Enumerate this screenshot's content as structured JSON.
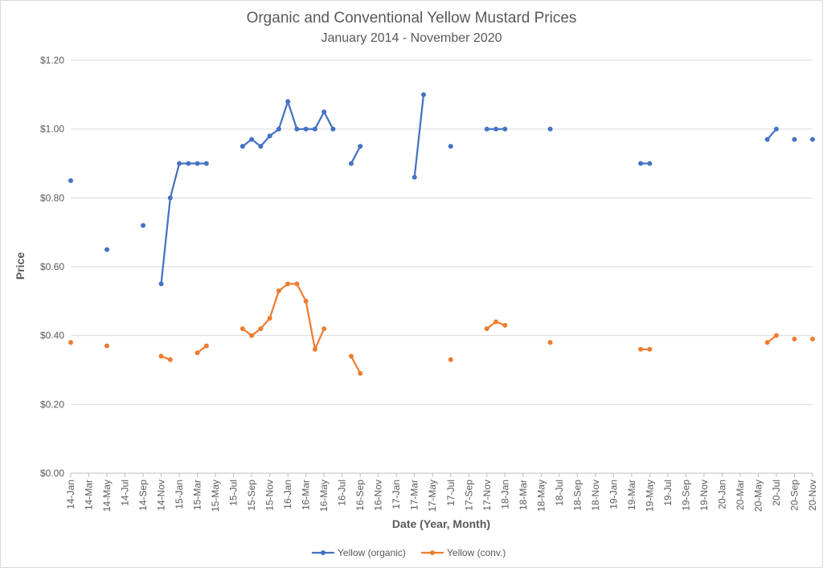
{
  "chart_data": {
    "type": "line",
    "title": "Organic and Conventional Yellow Mustard Prices",
    "subtitle": "January 2014 - November 2020",
    "xlabel": "Date (Year, Month)",
    "ylabel": "Price",
    "ylim": [
      0,
      1.2
    ],
    "y_ticks": [
      "$0.00",
      "$0.20",
      "$0.40",
      "$0.60",
      "$0.80",
      "$1.00",
      "$1.20"
    ],
    "x_tick_labels": [
      "14-Jan",
      "14-Mar",
      "14-May",
      "14-Jul",
      "14-Sep",
      "14-Nov",
      "15-Jan",
      "15-Mar",
      "15-May",
      "15-Jul",
      "15-Sep",
      "15-Nov",
      "16-Jan",
      "16-Mar",
      "16-May",
      "16-Jul",
      "16-Sep",
      "16-Nov",
      "17-Jan",
      "17-Mar",
      "17-May",
      "17-Jul",
      "17-Sep",
      "17-Nov",
      "18-Jan",
      "18-Mar",
      "18-May",
      "18-Jul",
      "18-Sep",
      "18-Nov",
      "19-Jan",
      "19-Mar",
      "19-May",
      "19-Jul",
      "19-Sep",
      "19-Nov",
      "20-Jan",
      "20-Mar",
      "20-May",
      "20-Jul",
      "20-Sep",
      "20-Nov"
    ],
    "grid": true,
    "legend_position": "bottom",
    "series": [
      {
        "name": "Yellow (organic)",
        "color": "#4472c4",
        "points": [
          {
            "x": "14-Jan",
            "y": 0.85
          },
          {
            "x": "14-May",
            "y": 0.65
          },
          {
            "x": "14-Sep",
            "y": 0.72
          },
          {
            "x": "14-Nov",
            "y": 0.55
          },
          {
            "x": "14-Dec",
            "y": 0.8
          },
          {
            "x": "15-Jan",
            "y": 0.9
          },
          {
            "x": "15-Feb",
            "y": 0.9
          },
          {
            "x": "15-Mar",
            "y": 0.9
          },
          {
            "x": "15-Apr",
            "y": 0.9
          },
          {
            "x": "15-Aug",
            "y": 0.95
          },
          {
            "x": "15-Sep",
            "y": 0.97
          },
          {
            "x": "15-Oct",
            "y": 0.95
          },
          {
            "x": "15-Nov",
            "y": 0.98
          },
          {
            "x": "15-Dec",
            "y": 1.0
          },
          {
            "x": "16-Jan",
            "y": 1.08
          },
          {
            "x": "16-Feb",
            "y": 1.0
          },
          {
            "x": "16-Mar",
            "y": 1.0
          },
          {
            "x": "16-Apr",
            "y": 1.0
          },
          {
            "x": "16-May",
            "y": 1.05
          },
          {
            "x": "16-Jun",
            "y": 1.0
          },
          {
            "x": "16-Aug",
            "y": 0.9
          },
          {
            "x": "16-Sep",
            "y": 0.95
          },
          {
            "x": "17-Mar",
            "y": 0.86
          },
          {
            "x": "17-Apr",
            "y": 1.1
          },
          {
            "x": "17-Jul",
            "y": 0.95
          },
          {
            "x": "17-Nov",
            "y": 1.0
          },
          {
            "x": "17-Dec",
            "y": 1.0
          },
          {
            "x": "18-Jan",
            "y": 1.0
          },
          {
            "x": "18-Jun",
            "y": 1.0
          },
          {
            "x": "19-Apr",
            "y": 0.9
          },
          {
            "x": "19-May",
            "y": 0.9
          },
          {
            "x": "20-Jun",
            "y": 0.97
          },
          {
            "x": "20-Jul",
            "y": 1.0
          },
          {
            "x": "20-Sep",
            "y": 0.97
          },
          {
            "x": "20-Nov",
            "y": 0.97
          }
        ]
      },
      {
        "name": "Yellow (conv.)",
        "color": "#ed7d31",
        "points": [
          {
            "x": "14-Jan",
            "y": 0.38
          },
          {
            "x": "14-May",
            "y": 0.37
          },
          {
            "x": "14-Nov",
            "y": 0.34
          },
          {
            "x": "14-Dec",
            "y": 0.33
          },
          {
            "x": "15-Mar",
            "y": 0.35
          },
          {
            "x": "15-Apr",
            "y": 0.37
          },
          {
            "x": "15-Aug",
            "y": 0.42
          },
          {
            "x": "15-Sep",
            "y": 0.4
          },
          {
            "x": "15-Oct",
            "y": 0.42
          },
          {
            "x": "15-Nov",
            "y": 0.45
          },
          {
            "x": "15-Dec",
            "y": 0.53
          },
          {
            "x": "16-Jan",
            "y": 0.55
          },
          {
            "x": "16-Feb",
            "y": 0.55
          },
          {
            "x": "16-Mar",
            "y": 0.5
          },
          {
            "x": "16-Apr",
            "y": 0.36
          },
          {
            "x": "16-May",
            "y": 0.42
          },
          {
            "x": "16-Aug",
            "y": 0.34
          },
          {
            "x": "16-Sep",
            "y": 0.29
          },
          {
            "x": "17-Jul",
            "y": 0.33
          },
          {
            "x": "17-Nov",
            "y": 0.42
          },
          {
            "x": "17-Dec",
            "y": 0.44
          },
          {
            "x": "18-Jan",
            "y": 0.43
          },
          {
            "x": "18-Jun",
            "y": 0.38
          },
          {
            "x": "19-Apr",
            "y": 0.36
          },
          {
            "x": "19-May",
            "y": 0.36
          },
          {
            "x": "20-Jun",
            "y": 0.38
          },
          {
            "x": "20-Jul",
            "y": 0.4
          },
          {
            "x": "20-Sep",
            "y": 0.39
          },
          {
            "x": "20-Nov",
            "y": 0.39
          }
        ]
      }
    ]
  }
}
